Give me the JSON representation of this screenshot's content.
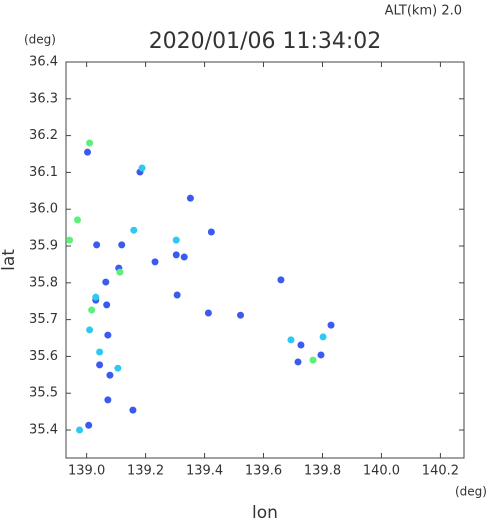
{
  "chart_data": {
    "type": "scatter",
    "title": "2020/01/06 11:34:02",
    "subtitle": "ALT(km) 2.0",
    "y_unit": "(deg)",
    "x_unit": "(deg)",
    "x_label": "lon",
    "y_label": "lat",
    "xlim": [
      138.93,
      140.28
    ],
    "ylim": [
      35.324,
      36.4
    ],
    "xticks": [
      {
        "value": 139,
        "label": "139.0"
      },
      139.2,
      139.4,
      139.6,
      139.8,
      {
        "value": 140,
        "label": "140.0"
      },
      140.2
    ],
    "yticks": [
      36.4,
      36.3,
      36.2,
      36.1,
      {
        "value": 36,
        "label": "36.0"
      },
      35.9,
      35.8,
      35.7,
      35.6,
      35.5,
      35.4
    ],
    "series": [
      {
        "color": "#3a5af0",
        "x": [
          139.003,
          139.181,
          139.034,
          139.119,
          139.232,
          139.304,
          139.331,
          139.109,
          139.065,
          139.031,
          139.068,
          139.307,
          139.413,
          139.522,
          139.659,
          139.727,
          139.717,
          139.829,
          139.795,
          139.044,
          139.072,
          139.079,
          139.007,
          139.072,
          139.157,
          139.352,
          139.423
        ],
        "values": [
          36.155,
          36.101,
          35.903,
          35.903,
          35.857,
          35.876,
          35.87,
          35.84,
          35.802,
          35.753,
          35.74,
          35.767,
          35.718,
          35.712,
          35.808,
          35.631,
          35.585,
          35.685,
          35.604,
          35.577,
          35.658,
          35.549,
          35.413,
          35.482,
          35.454,
          36.03,
          35.938
        ]
      },
      {
        "color": "#2ec8f0",
        "x": [
          139.16,
          139.304,
          139.031,
          139.01,
          139.044,
          139.106,
          139.693,
          139.802,
          138.976,
          139.188
        ],
        "values": [
          35.943,
          35.916,
          35.761,
          35.672,
          35.612,
          35.568,
          35.645,
          35.653,
          35.4,
          36.112
        ]
      },
      {
        "color": "#5af07a",
        "x": [
          139.01,
          138.942,
          138.969,
          139.768,
          139.017,
          139.113
        ],
        "values": [
          36.18,
          35.916,
          35.971,
          35.59,
          35.726,
          35.829
        ]
      }
    ]
  }
}
